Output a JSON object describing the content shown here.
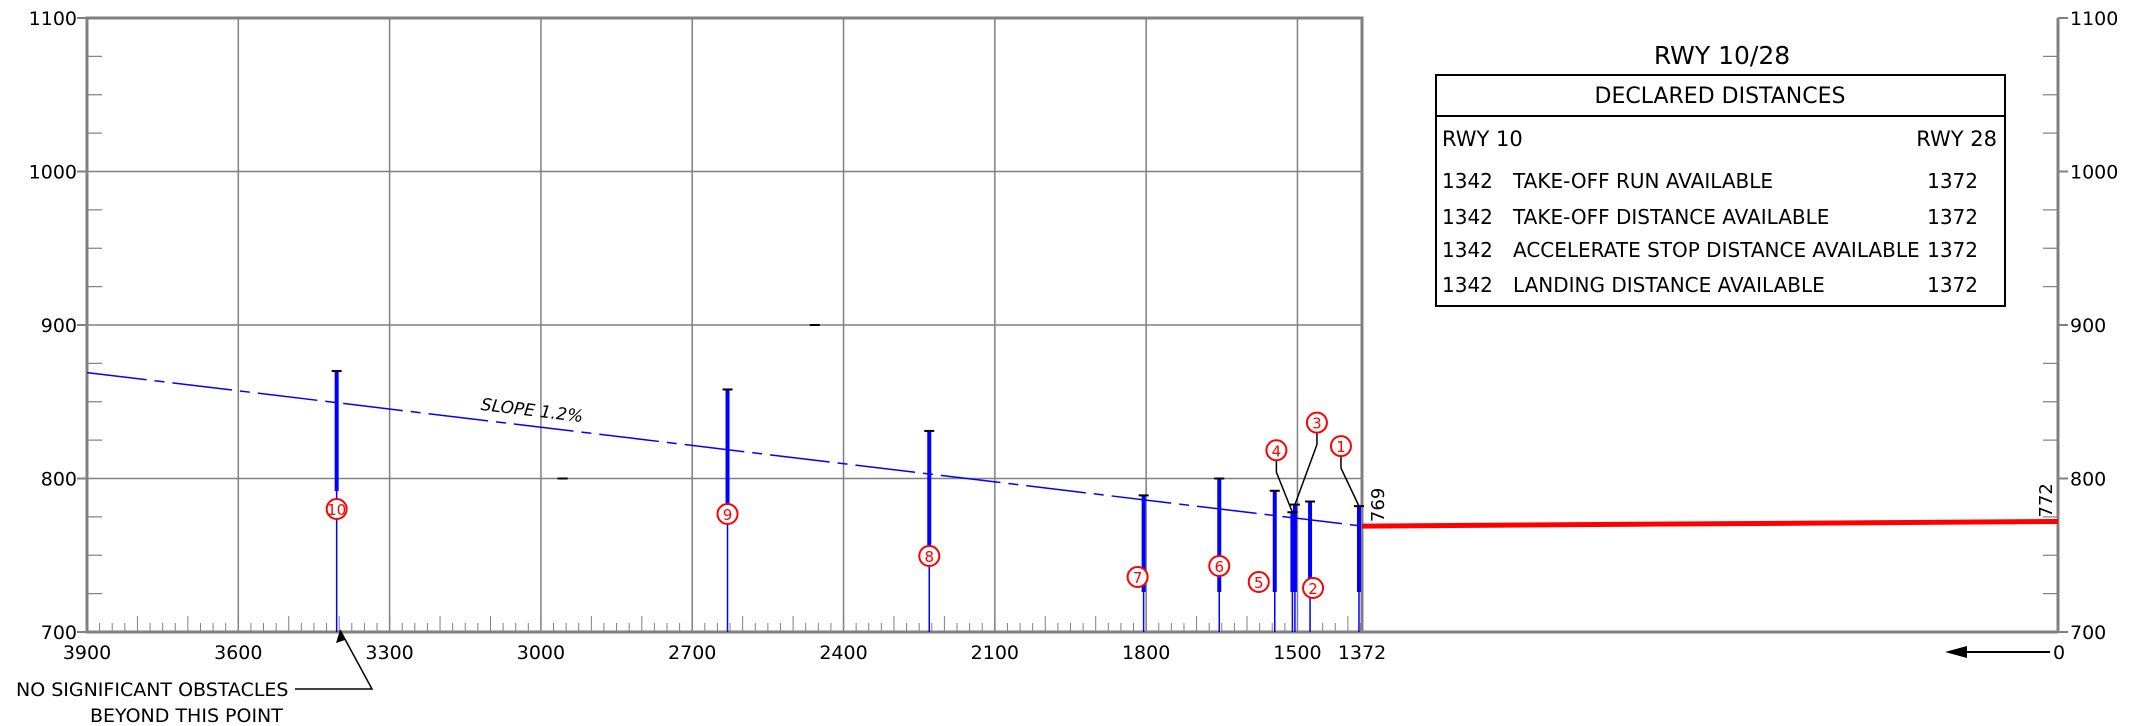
{
  "chart_data": {
    "type": "obstacle-profile",
    "x_axis": {
      "range": [
        3900,
        1372
      ],
      "tick_labels": [
        "3900",
        "3600",
        "3300",
        "3000",
        "2700",
        "2400",
        "2100",
        "1800",
        "1500",
        "1372"
      ],
      "right_segment_label": "0"
    },
    "y_axis": {
      "range": [
        700,
        1100
      ],
      "tick_labels": [
        "700",
        "800",
        "900",
        "1000",
        "1100"
      ]
    },
    "grid": true,
    "slope_line": {
      "label": "SLOPE 1.2%",
      "from": {
        "x": 3900,
        "y": 869
      },
      "to": {
        "x": 1372,
        "y": 769
      }
    },
    "runway": {
      "start_elevation": "769",
      "end_elevation": "772"
    },
    "obstacles": [
      {
        "id": "1",
        "x": 1378,
        "top": 782
      },
      {
        "id": "2",
        "x": 1475,
        "top": 785
      },
      {
        "id": "3",
        "x": 1505,
        "top": 783
      },
      {
        "id": "4",
        "x": 1510,
        "top": 778
      },
      {
        "id": "5",
        "x": 1545,
        "top": 792
      },
      {
        "id": "6",
        "x": 1655,
        "top": 800
      },
      {
        "id": "7",
        "x": 1805,
        "top": 789
      },
      {
        "id": "8",
        "x": 2230,
        "top": 831
      },
      {
        "id": "9",
        "x": 2630,
        "top": 858
      },
      {
        "id": "10",
        "x": 3405,
        "top": 870
      }
    ],
    "annotation": {
      "line1": "NO SIGNIFICANT OBSTACLES",
      "line2": "BEYOND THIS POINT"
    }
  },
  "declared_distances": {
    "title": "RWY 10/28",
    "header": "DECLARED DISTANCES",
    "col_left": "RWY 10",
    "col_right": "RWY 28",
    "rows": [
      {
        "left": "1342",
        "label": "TAKE-OFF RUN AVAILABLE",
        "right": "1372"
      },
      {
        "left": "1342",
        "label": "TAKE-OFF DISTANCE AVAILABLE",
        "right": "1372"
      },
      {
        "left": "1342",
        "label": "ACCELERATE STOP DISTANCE AVAILABLE",
        "right": "1372"
      },
      {
        "left": "1342",
        "label": "LANDING DISTANCE AVAILABLE",
        "right": "1372"
      }
    ]
  },
  "colors": {
    "grid": "#808080",
    "axis": "#808080",
    "slope": "#0000ff",
    "obstacle": "#0000ff",
    "runway": "#ff0000",
    "marker": "#ff0000"
  }
}
